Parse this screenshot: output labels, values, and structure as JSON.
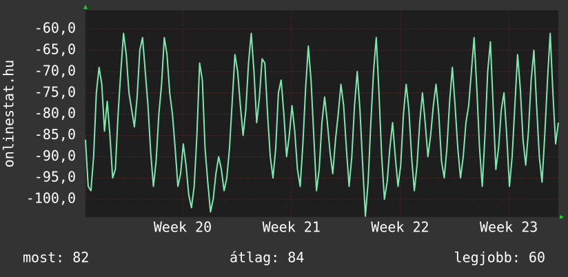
{
  "chart_data": {
    "type": "line",
    "y_label": "onlinestat.hu",
    "series": [
      {
        "name": null,
        "color": "#7fe7b0",
        "values": [
          -86,
          -97,
          -98,
          -90,
          -75,
          -69,
          -73,
          -84,
          -77,
          -85,
          -95,
          -93,
          -80,
          -70,
          -61,
          -66,
          -75,
          -79,
          -83,
          -76,
          -65,
          -62,
          -70,
          -78,
          -89,
          -97,
          -91,
          -80,
          -73,
          -62,
          -66,
          -75,
          -80,
          -88,
          -97,
          -94,
          -87,
          -92,
          -99,
          -102,
          -97,
          -85,
          -68,
          -72,
          -88,
          -96,
          -103,
          -100,
          -94,
          -90,
          -93,
          -98,
          -95,
          -88,
          -77,
          -66,
          -70,
          -78,
          -85,
          -79,
          -68,
          -61,
          -70,
          -82,
          -76,
          -67,
          -68,
          -80,
          -90,
          -95,
          -88,
          -75,
          -72,
          -80,
          -90,
          -85,
          -78,
          -84,
          -93,
          -97,
          -87,
          -74,
          -64,
          -72,
          -85,
          -98,
          -93,
          -82,
          -76,
          -82,
          -89,
          -94,
          -86,
          -80,
          -73,
          -78,
          -88,
          -97,
          -90,
          -78,
          -70,
          -79,
          -92,
          -104,
          -96,
          -82,
          -70,
          -62,
          -75,
          -90,
          -100,
          -96,
          -88,
          -82,
          -90,
          -97,
          -92,
          -80,
          -73,
          -79,
          -90,
          -98,
          -92,
          -82,
          -75,
          -82,
          -90,
          -85,
          -78,
          -73,
          -80,
          -91,
          -95,
          -88,
          -77,
          -69,
          -78,
          -88,
          -95,
          -90,
          -82,
          -78,
          -70,
          -62,
          -74,
          -88,
          -97,
          -85,
          -70,
          -63,
          -78,
          -93,
          -88,
          -79,
          -75,
          -85,
          -97,
          -90,
          -78,
          -66,
          -74,
          -86,
          -92,
          -84,
          -72,
          -65,
          -78,
          -90,
          -96,
          -85,
          -72,
          -61,
          -75,
          -87,
          -82
        ]
      }
    ],
    "ylim": [
      -104.2,
      -55.6
    ],
    "yticks": [
      {
        "value": -100,
        "label": "-100,0"
      },
      {
        "value": -95,
        "label": "-95,0"
      },
      {
        "value": -90,
        "label": "-90,0"
      },
      {
        "value": -85,
        "label": "-85,0"
      },
      {
        "value": -80,
        "label": "-80,0"
      },
      {
        "value": -75,
        "label": "-75,0"
      },
      {
        "value": -70,
        "label": "-70,0"
      },
      {
        "value": -65,
        "label": "-65,0"
      },
      {
        "value": -60,
        "label": "-60,0"
      }
    ],
    "xlim": [
      0,
      30.45
    ],
    "xticks": [
      {
        "value": 6.26,
        "label": "Week 20"
      },
      {
        "value": 13.26,
        "label": "Week 21"
      },
      {
        "value": 20.26,
        "label": "Week 22"
      },
      {
        "value": 27.26,
        "label": "Week 23"
      }
    ],
    "grid": true,
    "annotations": [
      "most: 82",
      "átlag: 84",
      "legjobb: 60"
    ]
  }
}
